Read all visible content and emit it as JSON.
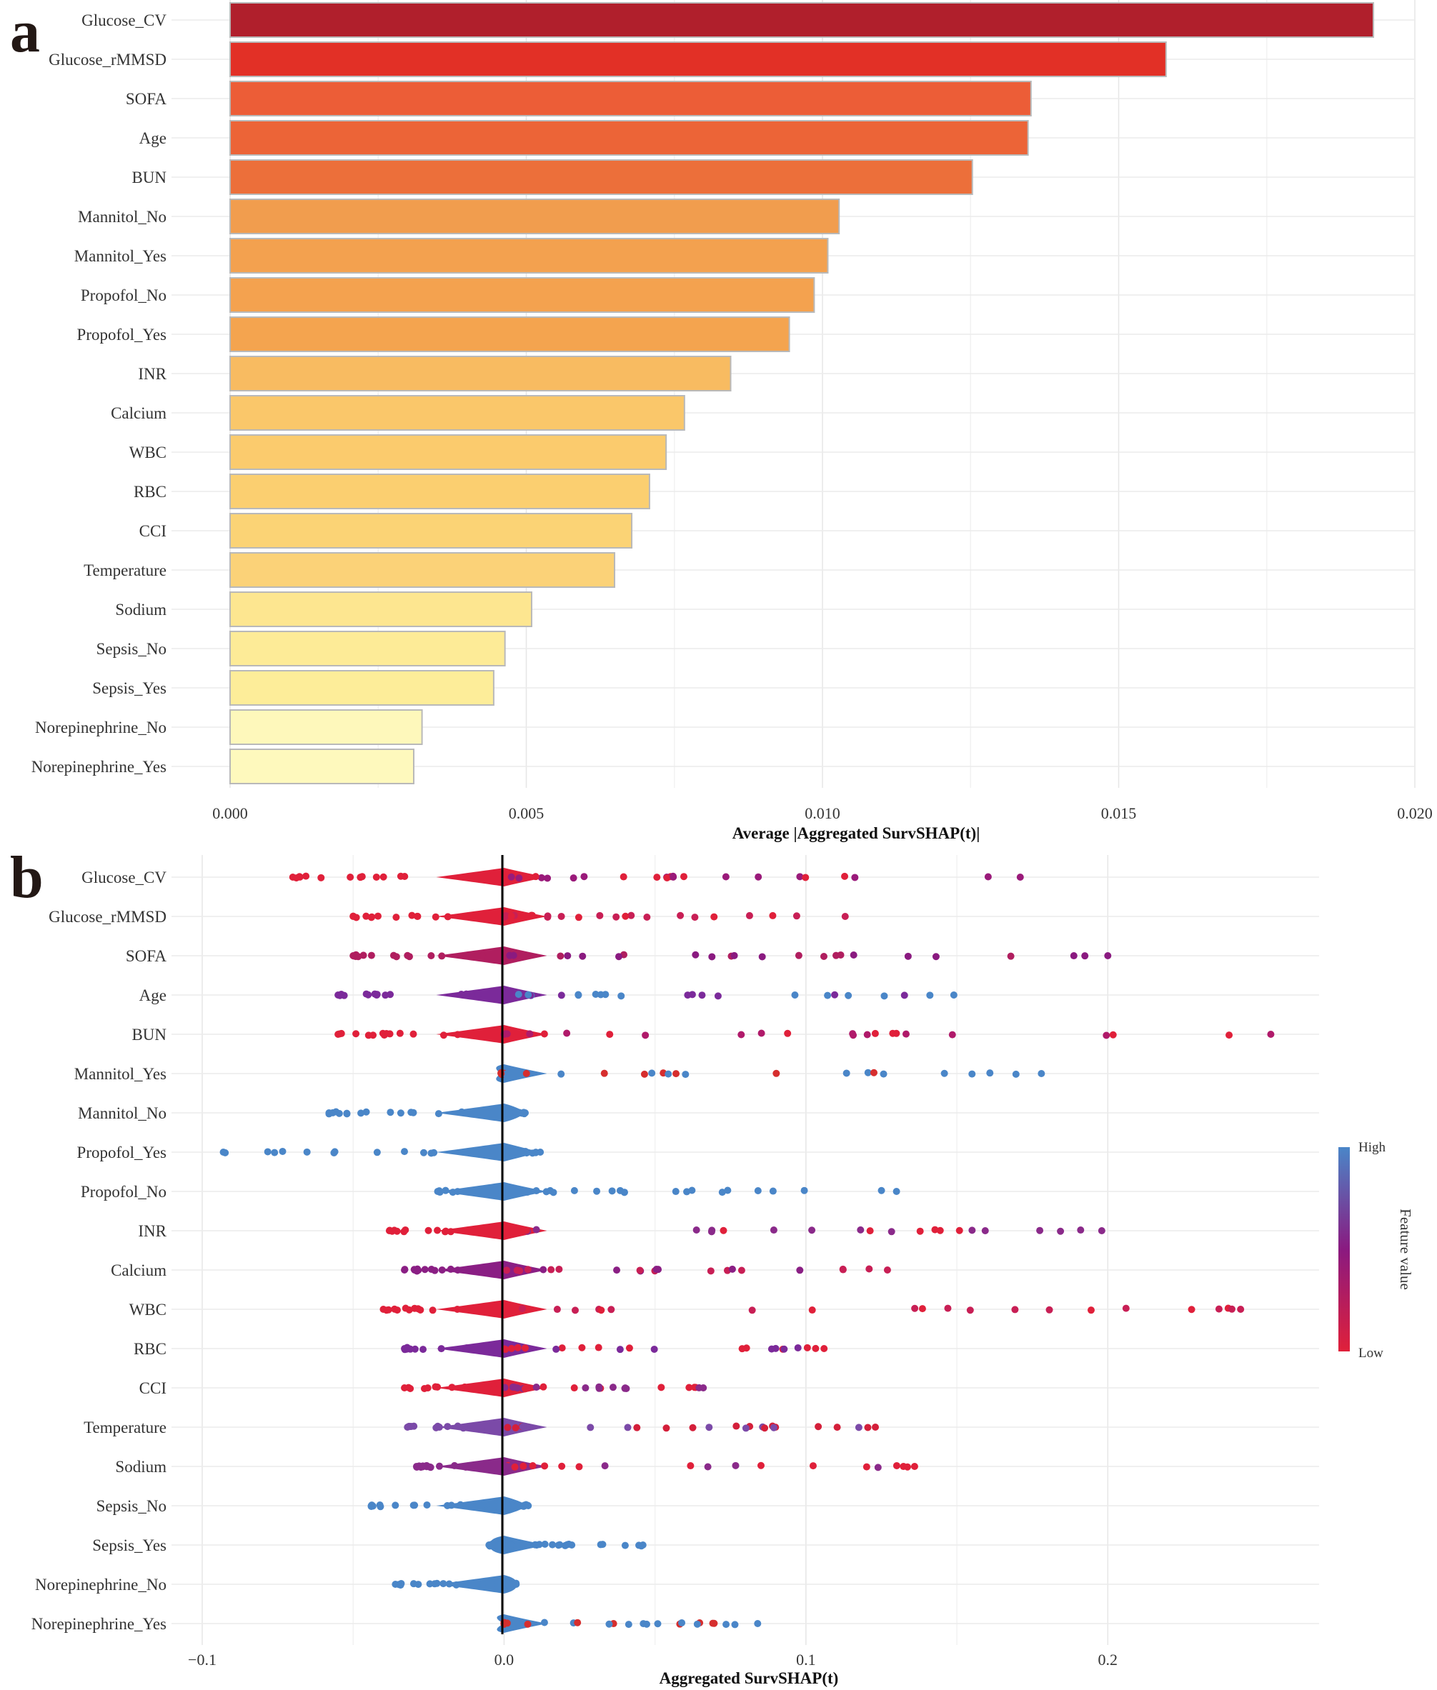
{
  "chart_data": [
    {
      "panel": "a",
      "type": "bar",
      "orientation": "horizontal",
      "features": [
        "Glucose_CV",
        "Glucose_rMMSD",
        "SOFA",
        "Age",
        "BUN",
        "Mannitol_No",
        "Mannitol_Yes",
        "Propofol_No",
        "Propofol_Yes",
        "INR",
        "Calcium",
        "WBC",
        "RBC",
        "CCI",
        "Temperature",
        "Sodium",
        "Sepsis_No",
        "Sepsis_Yes",
        "Norepinephrine_No",
        "Norepinephrine_Yes"
      ],
      "values": [
        0.0193,
        0.0158,
        0.01352,
        0.01347,
        0.01253,
        0.01028,
        0.01009,
        0.00986,
        0.00944,
        0.00845,
        0.00767,
        0.00736,
        0.00708,
        0.00678,
        0.00649,
        0.00509,
        0.00464,
        0.00445,
        0.00324,
        0.0031
      ],
      "colors": [
        "#b01f2c",
        "#e23026",
        "#ec5d37",
        "#ec6437",
        "#ec6f3a",
        "#f19d4e",
        "#f3a14f",
        "#f4a24f",
        "#f4a44f",
        "#f8bb61",
        "#fac76a",
        "#fbcb6d",
        "#fbcf70",
        "#fbd375",
        "#fbd278",
        "#fde690",
        "#fdeb97",
        "#fded99",
        "#fef8bb",
        "#fef9bd"
      ],
      "xlim": [
        0,
        0.02
      ],
      "xticks": [
        "0.000",
        "0.005",
        "0.010",
        "0.015",
        "0.020"
      ],
      "xlabel": "Average |Aggregated SurvSHAP(t)|"
    },
    {
      "panel": "b",
      "type": "scatter",
      "subtype": "beeswarm",
      "features": [
        "Glucose_CV",
        "Glucose_rMMSD",
        "SOFA",
        "Age",
        "BUN",
        "Mannitol_Yes",
        "Mannitol_No",
        "Propofol_Yes",
        "Propofol_No",
        "INR",
        "Calcium",
        "WBC",
        "RBC",
        "CCI",
        "Temperature",
        "Sodium",
        "Sepsis_No",
        "Sepsis_Yes",
        "Norepinephrine_No",
        "Norepinephrine_Yes"
      ],
      "ranges": [
        [
          -0.07,
          0.171
        ],
        [
          -0.05,
          0.113
        ],
        [
          -0.05,
          0.2
        ],
        [
          -0.055,
          0.149
        ],
        [
          -0.055,
          0.254
        ],
        [
          -0.001,
          0.178
        ],
        [
          -0.058,
          0.007
        ],
        [
          -0.093,
          0.012
        ],
        [
          -0.022,
          0.13
        ],
        [
          -0.038,
          0.198
        ],
        [
          -0.033,
          0.127
        ],
        [
          -0.04,
          0.244
        ],
        [
          -0.033,
          0.106
        ],
        [
          -0.033,
          0.066
        ],
        [
          -0.032,
          0.123
        ],
        [
          -0.029,
          0.136
        ],
        [
          -0.044,
          0.008
        ],
        [
          -0.005,
          0.046
        ],
        [
          -0.036,
          0.004
        ],
        [
          0.0,
          0.084
        ]
      ],
      "low_tail": [
        "#e0203a",
        "#e0203a",
        "#b01e5f",
        "#7b2a9a",
        "#e0203a",
        "#d62e2e",
        "#4a86c8",
        "#4a86c8",
        "#4a86c8",
        "#e0203a",
        "#8a1f84",
        "#e0203a",
        "#7b2a9a",
        "#e0203a",
        "#7b4aa8",
        "#8a2a8a",
        "#4a86c8",
        "#4a86c8",
        "#4a86c8",
        "#d62e2e"
      ],
      "high_tail": [
        "#9a1a7a",
        "#c81f55",
        "#8a1a80",
        "#4a86c8",
        "#b01a6a",
        "#4a86c8",
        "#4a86c8",
        "#4a86c8",
        "#4a86c8",
        "#8a2a8a",
        "#c81f55",
        "#c81f55",
        "#e0203a",
        "#8a2a8a",
        "#d41f3a",
        "#e0203a",
        "#4a86c8",
        "#4a86c8",
        "#4a86c8",
        "#4a86c8"
      ],
      "xlim": [
        -0.1,
        0.27
      ],
      "xticks": [
        "−0.1",
        "0.0",
        "0.1",
        "0.2"
      ],
      "xlabel": "Aggregated SurvSHAP(t)",
      "legend": {
        "title": "Feature value",
        "high": "High",
        "low": "Low",
        "high_color": "#4a86c8",
        "mid_color": "#8a1a80",
        "low_color": "#e0203a"
      }
    }
  ],
  "panels": {
    "a_letter": "a",
    "b_letter": "b"
  }
}
